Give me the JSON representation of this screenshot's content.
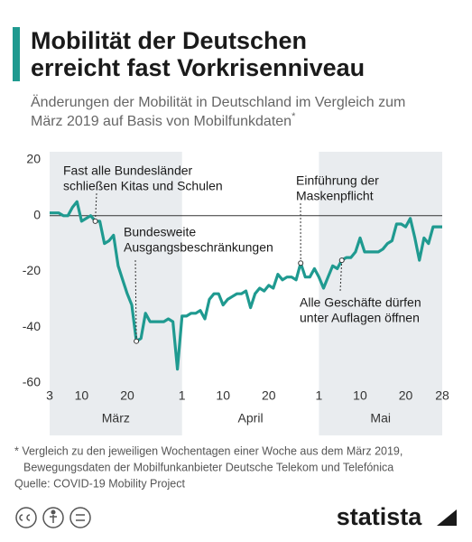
{
  "chart_data": {
    "type": "line",
    "title": [
      "Mobilität der Deutschen",
      "erreicht fast Vorkrisenniveau"
    ],
    "subtitle": [
      "Änderungen der Mobilität in Deutschland im Vergleich zum",
      "März 2019 auf Basis von Mobilfunkdaten"
    ],
    "subtitle_mark": "*",
    "color": "#1f9a90",
    "x": [
      0,
      1,
      2,
      3,
      4,
      5,
      6,
      7,
      8,
      9,
      10,
      11,
      12,
      13,
      14,
      15,
      16,
      17,
      18,
      19,
      20,
      21,
      22,
      23,
      24,
      25,
      26,
      27,
      28,
      29,
      30,
      31,
      32,
      33,
      34,
      35,
      36,
      37,
      38,
      39,
      40,
      41,
      42,
      43,
      44,
      45,
      46,
      47,
      48,
      49,
      50,
      51,
      52,
      53,
      54,
      55,
      56,
      57,
      58,
      59,
      60,
      61,
      62,
      63,
      64,
      65,
      66,
      67,
      68,
      69,
      70,
      71,
      72,
      73,
      74,
      75,
      76,
      77,
      78,
      79,
      80,
      81,
      82,
      83,
      84,
      85,
      86
    ],
    "values": [
      1,
      1,
      1,
      0,
      0,
      3,
      5,
      -2,
      -1,
      0,
      -2,
      -2,
      -10,
      -9,
      -7,
      -18,
      -23,
      -28,
      -32,
      -45,
      -44,
      -35,
      -38,
      -38,
      -38,
      -38,
      -37,
      -38,
      -55,
      -36,
      -36,
      -35,
      -35,
      -34,
      -37,
      -30,
      -28,
      -28,
      -32,
      -30,
      -29,
      -28,
      -28,
      -27,
      -33,
      -28,
      -26,
      -27,
      -25,
      -26,
      -21,
      -23,
      -22,
      -22,
      -23,
      -17,
      -22,
      -22,
      -19,
      -22,
      -26,
      -22,
      -18,
      -19,
      -16,
      -15,
      -15,
      -13,
      -8,
      -13,
      -13,
      -13,
      -13,
      -12,
      -10,
      -9,
      -3,
      -3,
      -4,
      -1,
      -8,
      -16,
      -8,
      -10,
      -4,
      -4,
      -4
    ],
    "xlim": [
      0,
      86
    ],
    "xticks": [
      {
        "value": 0,
        "label": "3"
      },
      {
        "value": 7,
        "label": "10"
      },
      {
        "value": 17,
        "label": "20"
      },
      {
        "value": 29,
        "label": "1"
      },
      {
        "value": 38,
        "label": "10"
      },
      {
        "value": 48,
        "label": "20"
      },
      {
        "value": 59,
        "label": "1"
      },
      {
        "value": 68,
        "label": "10"
      },
      {
        "value": 78,
        "label": "20"
      },
      {
        "value": 86,
        "label": "28"
      }
    ],
    "months": [
      {
        "label": "März",
        "from": 0,
        "to": 29,
        "shaded": true
      },
      {
        "label": "April",
        "from": 29,
        "to": 59,
        "shaded": false
      },
      {
        "label": "Mai",
        "from": 59,
        "to": 86,
        "shaded": true
      }
    ],
    "ylim": [
      -60,
      20
    ],
    "yticks": [
      20,
      0,
      -20,
      -40,
      -60
    ],
    "zero_line": true,
    "annotations": [
      {
        "lines": [
          "Fast alle Bundesländer",
          "schließen Kitas und Schulen"
        ],
        "x": 10
      },
      {
        "lines": [
          "Bundesweite",
          "Ausgangsbeschränkungen"
        ],
        "x": 19
      },
      {
        "lines": [
          "Einführung der",
          "Maskenpflicht"
        ],
        "x": 55
      },
      {
        "lines": [
          "Alle Geschäfte dürfen",
          "unter Auflagen öffnen"
        ],
        "x": 64
      }
    ],
    "footnote": [
      "* Vergleich zu den jeweiligen Wochentagen einer Woche aus dem März 2019,",
      "Bewegungsdaten der Mobilfunkanbieter Deutsche Telekom und Telefónica"
    ],
    "source": "Quelle: COVID-19 Mobility Project",
    "brand": "statista"
  }
}
